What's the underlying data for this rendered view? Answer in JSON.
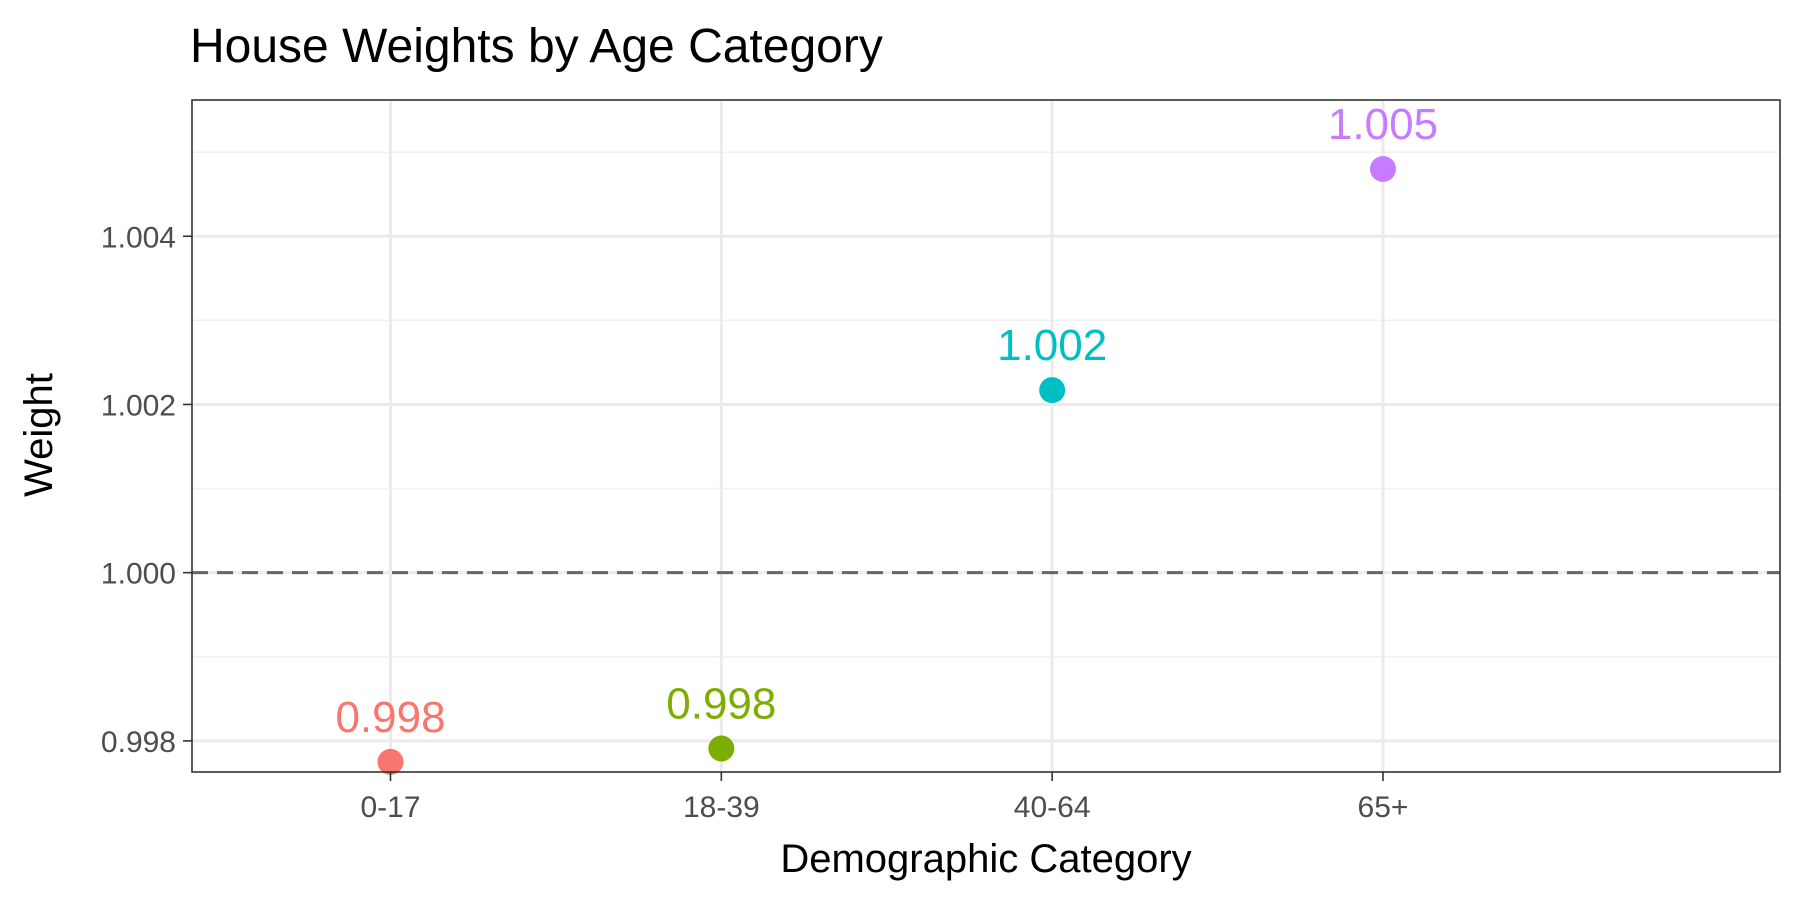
{
  "chart_data": {
    "type": "scatter",
    "title": "House Weights by Age Category",
    "xlabel": "Demographic Category",
    "ylabel": "Weight",
    "categories": [
      "0-17",
      "18-39",
      "40-64",
      "65+"
    ],
    "values": [
      0.99775,
      0.99791,
      1.00217,
      1.0048
    ],
    "labels": [
      "0.998",
      "0.998",
      "1.002",
      "1.005"
    ],
    "colors": [
      "#F8766D",
      "#7CAE00",
      "#00BFC4",
      "#C77CFF"
    ],
    "yticks": [
      0.998,
      1.0,
      1.002,
      1.004
    ],
    "ytick_labels": [
      "0.998",
      "1.000",
      "1.002",
      "1.004"
    ],
    "ylim": [
      0.99763,
      1.00562
    ],
    "reference_line": {
      "y": 1.0,
      "style": "dashed",
      "color": "#666666"
    },
    "grid": true,
    "legend": "none"
  }
}
